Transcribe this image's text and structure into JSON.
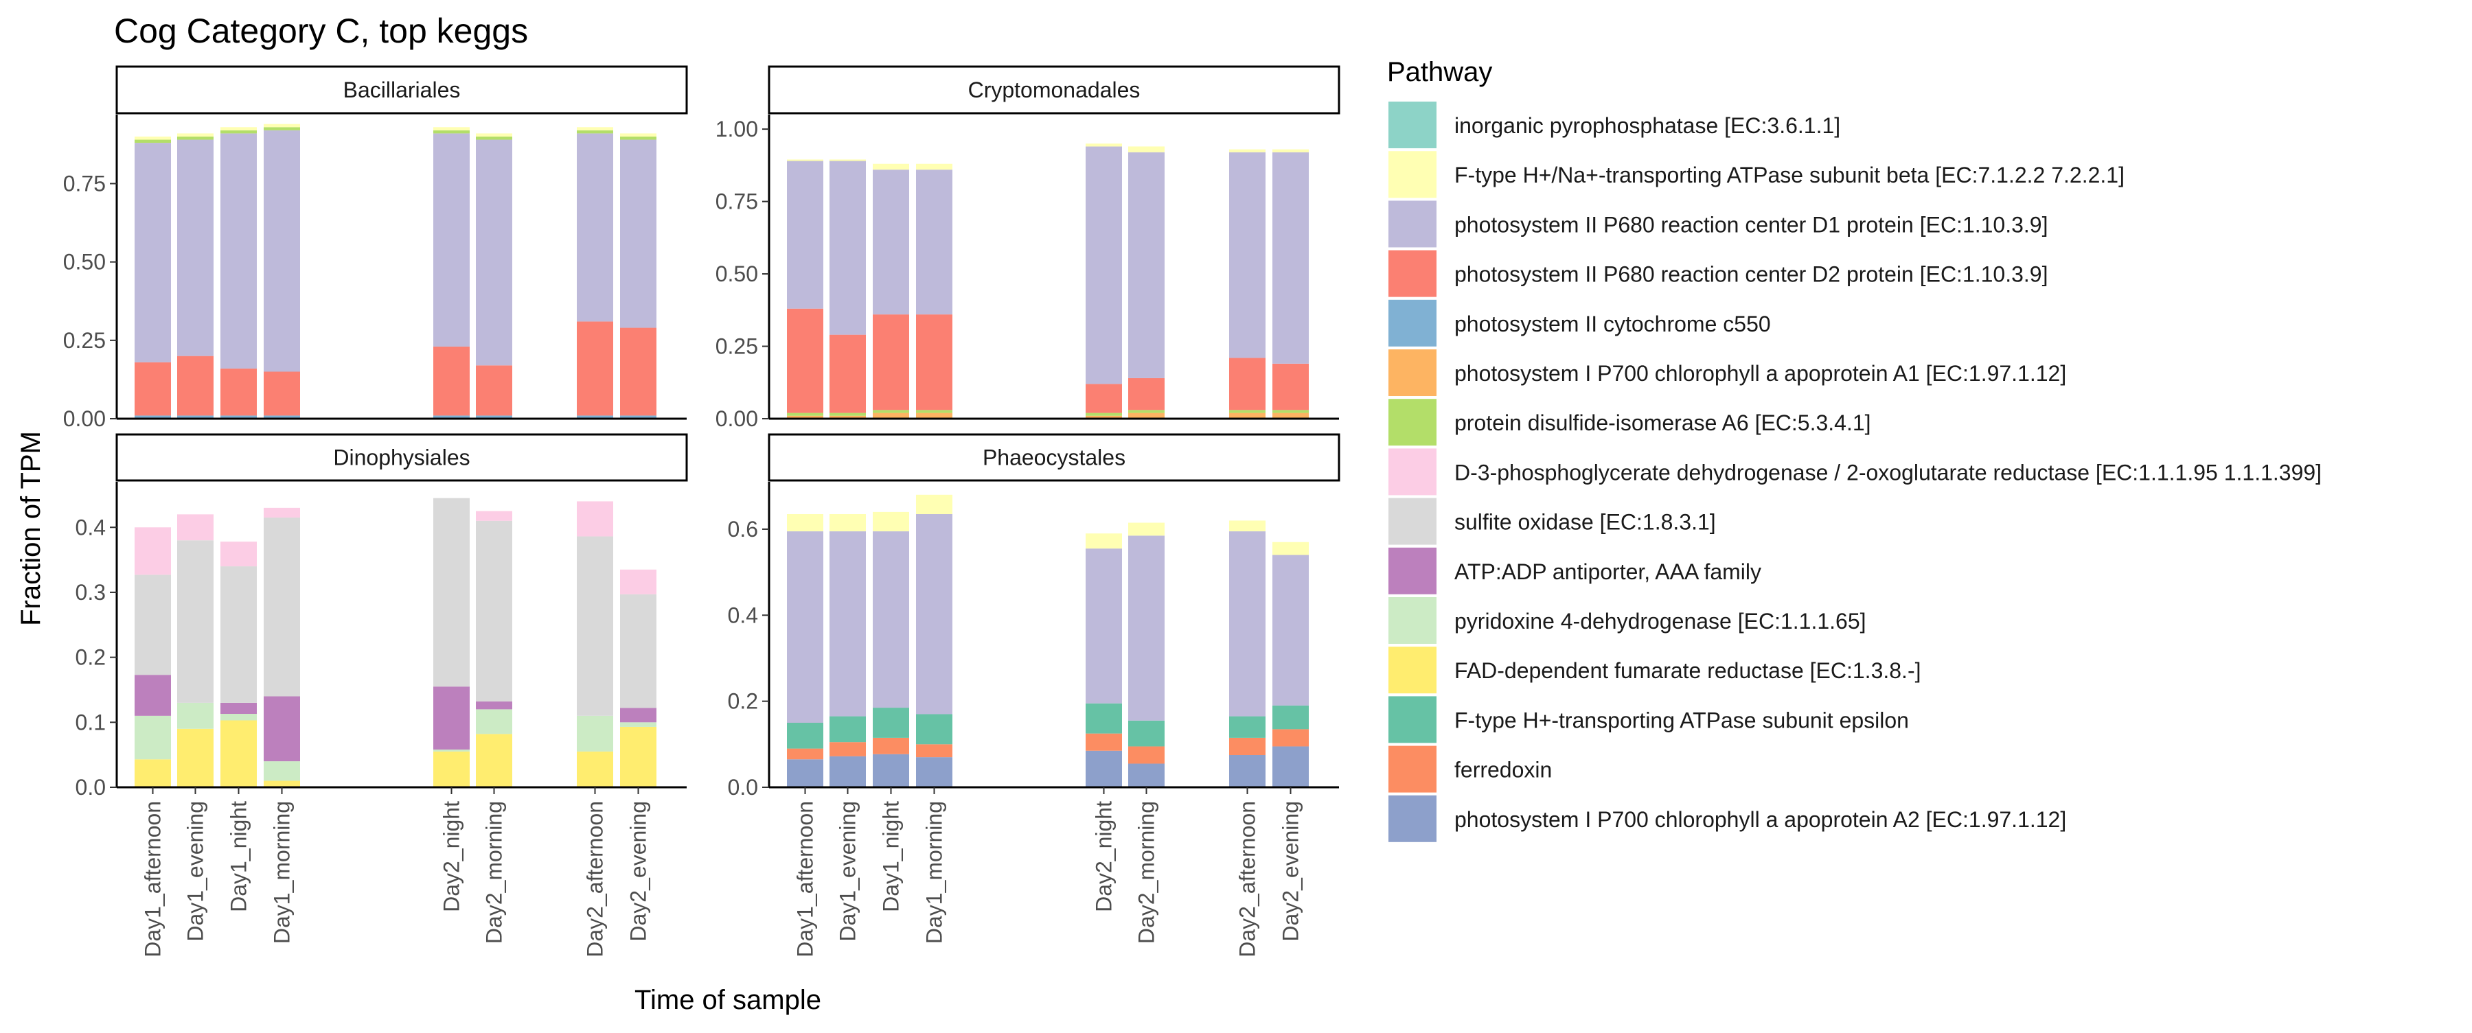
{
  "chart_data": {
    "type": "bar",
    "stacked": true,
    "title": "Cog Category C, top keggs",
    "xlabel": "Time of sample",
    "ylabel": "Fraction of TPM",
    "legend_title": "Pathway",
    "legend_position": "right",
    "grid": false,
    "categories": [
      "Day1_afternoon",
      "Day1_evening",
      "Day1_night",
      "Day1_morning",
      "Day2_night",
      "Day2_morning",
      "Day2_afternoon",
      "Day2_evening"
    ],
    "series": [
      {
        "key": "s1",
        "name": "inorganic pyrophosphatase [EC:3.6.1.1]",
        "color": "#8DD3C7"
      },
      {
        "key": "s2",
        "name": "F-type H+/Na+-transporting ATPase subunit beta [EC:7.1.2.2 7.2.2.1]",
        "color": "#FFFFB3"
      },
      {
        "key": "s3",
        "name": "photosystem II P680 reaction center D1 protein [EC:1.10.3.9]",
        "color": "#BEBADA"
      },
      {
        "key": "s4",
        "name": "photosystem II P680 reaction center D2 protein [EC:1.10.3.9]",
        "color": "#FB8072"
      },
      {
        "key": "s5",
        "name": "photosystem II cytochrome c550",
        "color": "#80B1D3"
      },
      {
        "key": "s6",
        "name": "photosystem I P700 chlorophyll a apoprotein A1 [EC:1.97.1.12]",
        "color": "#FDB462"
      },
      {
        "key": "s7",
        "name": "protein disulfide-isomerase A6 [EC:5.3.4.1]",
        "color": "#B3DE69"
      },
      {
        "key": "s8",
        "name": "D-3-phosphoglycerate dehydrogenase / 2-oxoglutarate reductase [EC:1.1.1.95 1.1.1.399]",
        "color": "#FCCDE5"
      },
      {
        "key": "s9",
        "name": "sulfite oxidase [EC:1.8.3.1]",
        "color": "#D9D9D9"
      },
      {
        "key": "s10",
        "name": "ATP:ADP antiporter, AAA family",
        "color": "#BC80BD"
      },
      {
        "key": "s11",
        "name": "pyridoxine 4-dehydrogenase [EC:1.1.1.65]",
        "color": "#CCEBC5"
      },
      {
        "key": "s12",
        "name": "FAD-dependent fumarate reductase [EC:1.3.8.-]",
        "color": "#FFED6F"
      },
      {
        "key": "s13",
        "name": "F-type H+-transporting ATPase subunit epsilon",
        "color": "#66C2A5"
      },
      {
        "key": "s14",
        "name": "ferredoxin",
        "color": "#FC8D62"
      },
      {
        "key": "s15",
        "name": "photosystem I P700 chlorophyll a apoprotein A2 [EC:1.97.1.12]",
        "color": "#8DA0CB"
      }
    ],
    "panels": [
      {
        "title": "Bacillariales",
        "ylim": [
          0,
          0.97
        ],
        "yticks": [
          0,
          0.25,
          0.5,
          0.75
        ],
        "yticklabels": [
          "0.00",
          "0.25",
          "0.50",
          "0.75"
        ],
        "bars": [
          {
            "category": "Day1_afternoon",
            "segments": [
              [
                "s5",
                0.01
              ],
              [
                "s4",
                0.17
              ],
              [
                "s3",
                0.7
              ],
              [
                "s7",
                0.01
              ],
              [
                "s2",
                0.01
              ]
            ]
          },
          {
            "category": "Day1_evening",
            "segments": [
              [
                "s5",
                0.01
              ],
              [
                "s4",
                0.19
              ],
              [
                "s3",
                0.69
              ],
              [
                "s7",
                0.01
              ],
              [
                "s2",
                0.01
              ]
            ]
          },
          {
            "category": "Day1_night",
            "segments": [
              [
                "s5",
                0.01
              ],
              [
                "s4",
                0.15
              ],
              [
                "s3",
                0.75
              ],
              [
                "s7",
                0.01
              ],
              [
                "s2",
                0.01
              ]
            ]
          },
          {
            "category": "Day1_morning",
            "segments": [
              [
                "s5",
                0.01
              ],
              [
                "s4",
                0.14
              ],
              [
                "s3",
                0.77
              ],
              [
                "s7",
                0.01
              ],
              [
                "s2",
                0.01
              ]
            ]
          },
          {
            "category": "Day2_night",
            "segments": [
              [
                "s5",
                0.01
              ],
              [
                "s4",
                0.22
              ],
              [
                "s3",
                0.68
              ],
              [
                "s7",
                0.01
              ],
              [
                "s2",
                0.01
              ]
            ]
          },
          {
            "category": "Day2_morning",
            "segments": [
              [
                "s5",
                0.01
              ],
              [
                "s4",
                0.16
              ],
              [
                "s3",
                0.72
              ],
              [
                "s7",
                0.01
              ],
              [
                "s2",
                0.01
              ]
            ]
          },
          {
            "category": "Day2_afternoon",
            "segments": [
              [
                "s5",
                0.01
              ],
              [
                "s4",
                0.3
              ],
              [
                "s3",
                0.6
              ],
              [
                "s7",
                0.01
              ],
              [
                "s2",
                0.01
              ]
            ]
          },
          {
            "category": "Day2_evening",
            "segments": [
              [
                "s5",
                0.01
              ],
              [
                "s4",
                0.28
              ],
              [
                "s3",
                0.6
              ],
              [
                "s7",
                0.01
              ],
              [
                "s2",
                0.01
              ]
            ]
          }
        ]
      },
      {
        "title": "Cryptomonadales",
        "ylim": [
          0,
          1.05
        ],
        "yticks": [
          0,
          0.25,
          0.5,
          0.75,
          1.0
        ],
        "yticklabels": [
          "0.00",
          "0.25",
          "0.50",
          "0.75",
          "1.00"
        ],
        "bars": [
          {
            "category": "Day1_afternoon",
            "segments": [
              [
                "s6",
                0.01
              ],
              [
                "s7",
                0.01
              ],
              [
                "s4",
                0.36
              ],
              [
                "s3",
                0.51
              ],
              [
                "s2",
                0.005
              ]
            ]
          },
          {
            "category": "Day1_evening",
            "segments": [
              [
                "s6",
                0.01
              ],
              [
                "s7",
                0.01
              ],
              [
                "s4",
                0.27
              ],
              [
                "s3",
                0.6
              ],
              [
                "s2",
                0.005
              ]
            ]
          },
          {
            "category": "Day1_night",
            "segments": [
              [
                "s6",
                0.02
              ],
              [
                "s7",
                0.01
              ],
              [
                "s4",
                0.33
              ],
              [
                "s3",
                0.5
              ],
              [
                "s2",
                0.02
              ]
            ]
          },
          {
            "category": "Day1_morning",
            "segments": [
              [
                "s6",
                0.02
              ],
              [
                "s7",
                0.01
              ],
              [
                "s4",
                0.33
              ],
              [
                "s3",
                0.5
              ],
              [
                "s2",
                0.02
              ]
            ]
          },
          {
            "category": "Day2_night",
            "segments": [
              [
                "s6",
                0.01
              ],
              [
                "s7",
                0.01
              ],
              [
                "s4",
                0.1
              ],
              [
                "s3",
                0.82
              ],
              [
                "s2",
                0.01
              ]
            ]
          },
          {
            "category": "Day2_morning",
            "segments": [
              [
                "s6",
                0.02
              ],
              [
                "s7",
                0.01
              ],
              [
                "s4",
                0.11
              ],
              [
                "s3",
                0.78
              ],
              [
                "s2",
                0.02
              ]
            ]
          },
          {
            "category": "Day2_afternoon",
            "segments": [
              [
                "s6",
                0.02
              ],
              [
                "s7",
                0.01
              ],
              [
                "s4",
                0.18
              ],
              [
                "s3",
                0.71
              ],
              [
                "s2",
                0.01
              ]
            ]
          },
          {
            "category": "Day2_evening",
            "segments": [
              [
                "s6",
                0.02
              ],
              [
                "s7",
                0.01
              ],
              [
                "s4",
                0.16
              ],
              [
                "s3",
                0.73
              ],
              [
                "s2",
                0.01
              ]
            ]
          }
        ]
      },
      {
        "title": "Dinophysiales",
        "ylim": [
          0,
          0.47
        ],
        "yticks": [
          0,
          0.1,
          0.2,
          0.3,
          0.4
        ],
        "yticklabels": [
          "0.0",
          "0.1",
          "0.2",
          "0.3",
          "0.4"
        ],
        "bars": [
          {
            "category": "Day1_afternoon",
            "segments": [
              [
                "s12",
                0.043
              ],
              [
                "s11",
                0.067
              ],
              [
                "s10",
                0.063
              ],
              [
                "s9",
                0.154
              ],
              [
                "s8",
                0.073
              ]
            ]
          },
          {
            "category": "Day1_evening",
            "segments": [
              [
                "s12",
                0.09
              ],
              [
                "s11",
                0.04
              ],
              [
                "s9",
                0.25
              ],
              [
                "s8",
                0.04
              ]
            ]
          },
          {
            "category": "Day1_night",
            "segments": [
              [
                "s12",
                0.103
              ],
              [
                "s11",
                0.01
              ],
              [
                "s10",
                0.017
              ],
              [
                "s9",
                0.21
              ],
              [
                "s8",
                0.038
              ]
            ]
          },
          {
            "category": "Day1_morning",
            "segments": [
              [
                "s12",
                0.01
              ],
              [
                "s11",
                0.03
              ],
              [
                "s10",
                0.1
              ],
              [
                "s9",
                0.275
              ],
              [
                "s8",
                0.015
              ]
            ]
          },
          {
            "category": "Day2_night",
            "segments": [
              [
                "s12",
                0.055
              ],
              [
                "s11",
                0.003
              ],
              [
                "s10",
                0.097
              ],
              [
                "s9",
                0.29
              ]
            ]
          },
          {
            "category": "Day2_morning",
            "segments": [
              [
                "s12",
                0.082
              ],
              [
                "s11",
                0.038
              ],
              [
                "s10",
                0.012
              ],
              [
                "s9",
                0.278
              ],
              [
                "s8",
                0.015
              ]
            ]
          },
          {
            "category": "Day2_afternoon",
            "segments": [
              [
                "s12",
                0.055
              ],
              [
                "s11",
                0.055
              ],
              [
                "s9",
                0.276
              ],
              [
                "s8",
                0.054
              ]
            ]
          },
          {
            "category": "Day2_evening",
            "segments": [
              [
                "s12",
                0.093
              ],
              [
                "s11",
                0.007
              ],
              [
                "s10",
                0.022
              ],
              [
                "s9",
                0.175
              ],
              [
                "s8",
                0.038
              ]
            ]
          }
        ]
      },
      {
        "title": "Phaeocystales",
        "ylim": [
          0,
          0.71
        ],
        "yticks": [
          0,
          0.2,
          0.4,
          0.6
        ],
        "yticklabels": [
          "0.0",
          "0.2",
          "0.4",
          "0.6"
        ],
        "bars": [
          {
            "category": "Day1_afternoon",
            "segments": [
              [
                "s15",
                0.065
              ],
              [
                "s14",
                0.025
              ],
              [
                "s13",
                0.06
              ],
              [
                "s3",
                0.445
              ],
              [
                "s2",
                0.04
              ]
            ]
          },
          {
            "category": "Day1_evening",
            "segments": [
              [
                "s15",
                0.072
              ],
              [
                "s14",
                0.033
              ],
              [
                "s13",
                0.06
              ],
              [
                "s3",
                0.43
              ],
              [
                "s2",
                0.04
              ]
            ]
          },
          {
            "category": "Day1_night",
            "segments": [
              [
                "s15",
                0.077
              ],
              [
                "s14",
                0.038
              ],
              [
                "s13",
                0.07
              ],
              [
                "s3",
                0.41
              ],
              [
                "s2",
                0.045
              ]
            ]
          },
          {
            "category": "Day1_morning",
            "segments": [
              [
                "s15",
                0.07
              ],
              [
                "s14",
                0.03
              ],
              [
                "s13",
                0.07
              ],
              [
                "s3",
                0.465
              ],
              [
                "s2",
                0.045
              ]
            ]
          },
          {
            "category": "Day2_night",
            "segments": [
              [
                "s15",
                0.085
              ],
              [
                "s14",
                0.04
              ],
              [
                "s13",
                0.07
              ],
              [
                "s3",
                0.36
              ],
              [
                "s2",
                0.035
              ]
            ]
          },
          {
            "category": "Day2_morning",
            "segments": [
              [
                "s15",
                0.055
              ],
              [
                "s14",
                0.04
              ],
              [
                "s13",
                0.06
              ],
              [
                "s3",
                0.43
              ],
              [
                "s2",
                0.03
              ]
            ]
          },
          {
            "category": "Day2_afternoon",
            "segments": [
              [
                "s15",
                0.075
              ],
              [
                "s14",
                0.04
              ],
              [
                "s13",
                0.05
              ],
              [
                "s3",
                0.43
              ],
              [
                "s2",
                0.025
              ]
            ]
          },
          {
            "category": "Day2_evening",
            "segments": [
              [
                "s15",
                0.095
              ],
              [
                "s14",
                0.04
              ],
              [
                "s13",
                0.055
              ],
              [
                "s3",
                0.35
              ],
              [
                "s2",
                0.03
              ]
            ]
          }
        ]
      }
    ]
  }
}
